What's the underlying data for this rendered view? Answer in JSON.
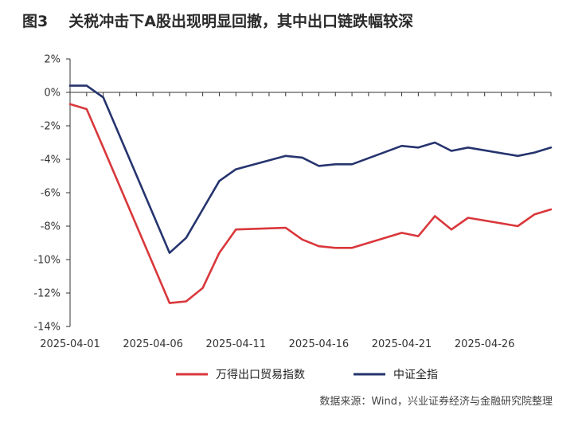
{
  "header": {
    "figure_label": "图3",
    "title_text": "关税冲击下A股出现明显回撤，其中出口链跌幅较深"
  },
  "source": "数据来源：Wind，兴业证券经济与金融研究院整理",
  "chart_data": {
    "type": "line",
    "title": "关税冲击下A股出现明显回撤，其中出口链跌幅较深",
    "x_dates": [
      "2025-04-01",
      "2025-04-02",
      "2025-04-03",
      "2025-04-07",
      "2025-04-08",
      "2025-04-09",
      "2025-04-10",
      "2025-04-11",
      "2025-04-14",
      "2025-04-15",
      "2025-04-16",
      "2025-04-17",
      "2025-04-18",
      "2025-04-21",
      "2025-04-22",
      "2025-04-23",
      "2025-04-24",
      "2025-04-25",
      "2025-04-28",
      "2025-04-29",
      "2025-04-30"
    ],
    "x_tick_labels": [
      "2025-04-01",
      "2025-04-06",
      "2025-04-11",
      "2025-04-16",
      "2025-04-21",
      "2025-04-26"
    ],
    "xlim": [
      "2025-04-01",
      "2025-04-30"
    ],
    "ylim": [
      -14,
      2
    ],
    "y_ticks": [
      2,
      0,
      -2,
      -4,
      -6,
      -8,
      -10,
      -12,
      -14
    ],
    "y_tick_suffix": "%",
    "grid": false,
    "legend_position": "bottom",
    "series": [
      {
        "name": "万得出口贸易指数",
        "color": "#d9373b",
        "values": [
          -0.7,
          -1.0,
          -3.3,
          -12.6,
          -12.5,
          -11.7,
          -9.6,
          -8.2,
          -8.1,
          -8.8,
          -9.2,
          -9.3,
          -9.3,
          -8.4,
          -8.6,
          -7.4,
          -8.2,
          -7.5,
          -8.0,
          -7.3,
          -7.0
        ]
      },
      {
        "name": "中证全指",
        "color": "#26346e",
        "values": [
          0.4,
          0.4,
          -0.3,
          -9.6,
          -8.7,
          -7.0,
          -5.3,
          -4.6,
          -3.8,
          -3.9,
          -4.4,
          -4.3,
          -4.3,
          -3.2,
          -3.3,
          -3.0,
          -3.5,
          -3.3,
          -3.8,
          -3.6,
          -3.3
        ]
      }
    ]
  }
}
